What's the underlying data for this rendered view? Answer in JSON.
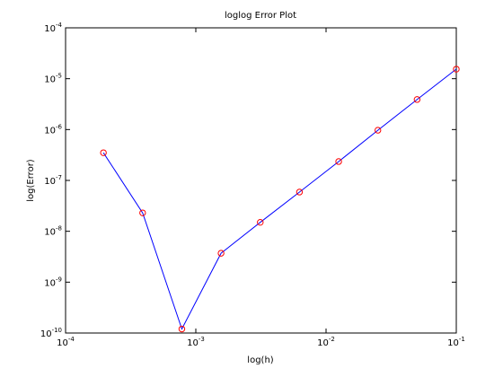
{
  "chart_data": {
    "type": "line",
    "title": "loglog Error Plot",
    "x_label": "log(h)",
    "y_label": "log(Error)",
    "x": [
      0.0001953125,
      0.000390625,
      0.00078125,
      0.0015625,
      0.003125,
      0.00625,
      0.0125,
      0.025,
      0.05,
      0.1
    ],
    "values": [
      3.5e-07,
      2.3e-08,
      1.2e-10,
      3.7e-09,
      1.5e-08,
      5.9e-08,
      2.35e-07,
      9.7e-07,
      3.9e-06,
      1.54e-05
    ],
    "line_color": "#0000ff",
    "marker_color": "#ff0000",
    "marker": "circle",
    "xscale": "log",
    "yscale": "log",
    "xlim": [
      0.0001,
      0.1
    ],
    "xticks": [
      {
        "value": 0.0001,
        "label": "10^-4"
      },
      {
        "value": 0.001,
        "label": "10^-3"
      },
      {
        "value": 0.01,
        "label": "10^-2"
      },
      {
        "value": 0.1,
        "label": "10^-1"
      }
    ],
    "ylim": [
      1e-10,
      0.0001
    ],
    "yticks": [
      {
        "value": 1e-10,
        "label": "10^-10"
      },
      {
        "value": 1e-09,
        "label": "10^-9"
      },
      {
        "value": 1e-08,
        "label": "10^-8"
      },
      {
        "value": 1e-07,
        "label": "10^-7"
      },
      {
        "value": 1e-06,
        "label": "10^-6"
      },
      {
        "value": 1e-05,
        "label": "10^-5"
      },
      {
        "value": 0.0001,
        "label": "10^-4"
      }
    ],
    "grid": false
  }
}
